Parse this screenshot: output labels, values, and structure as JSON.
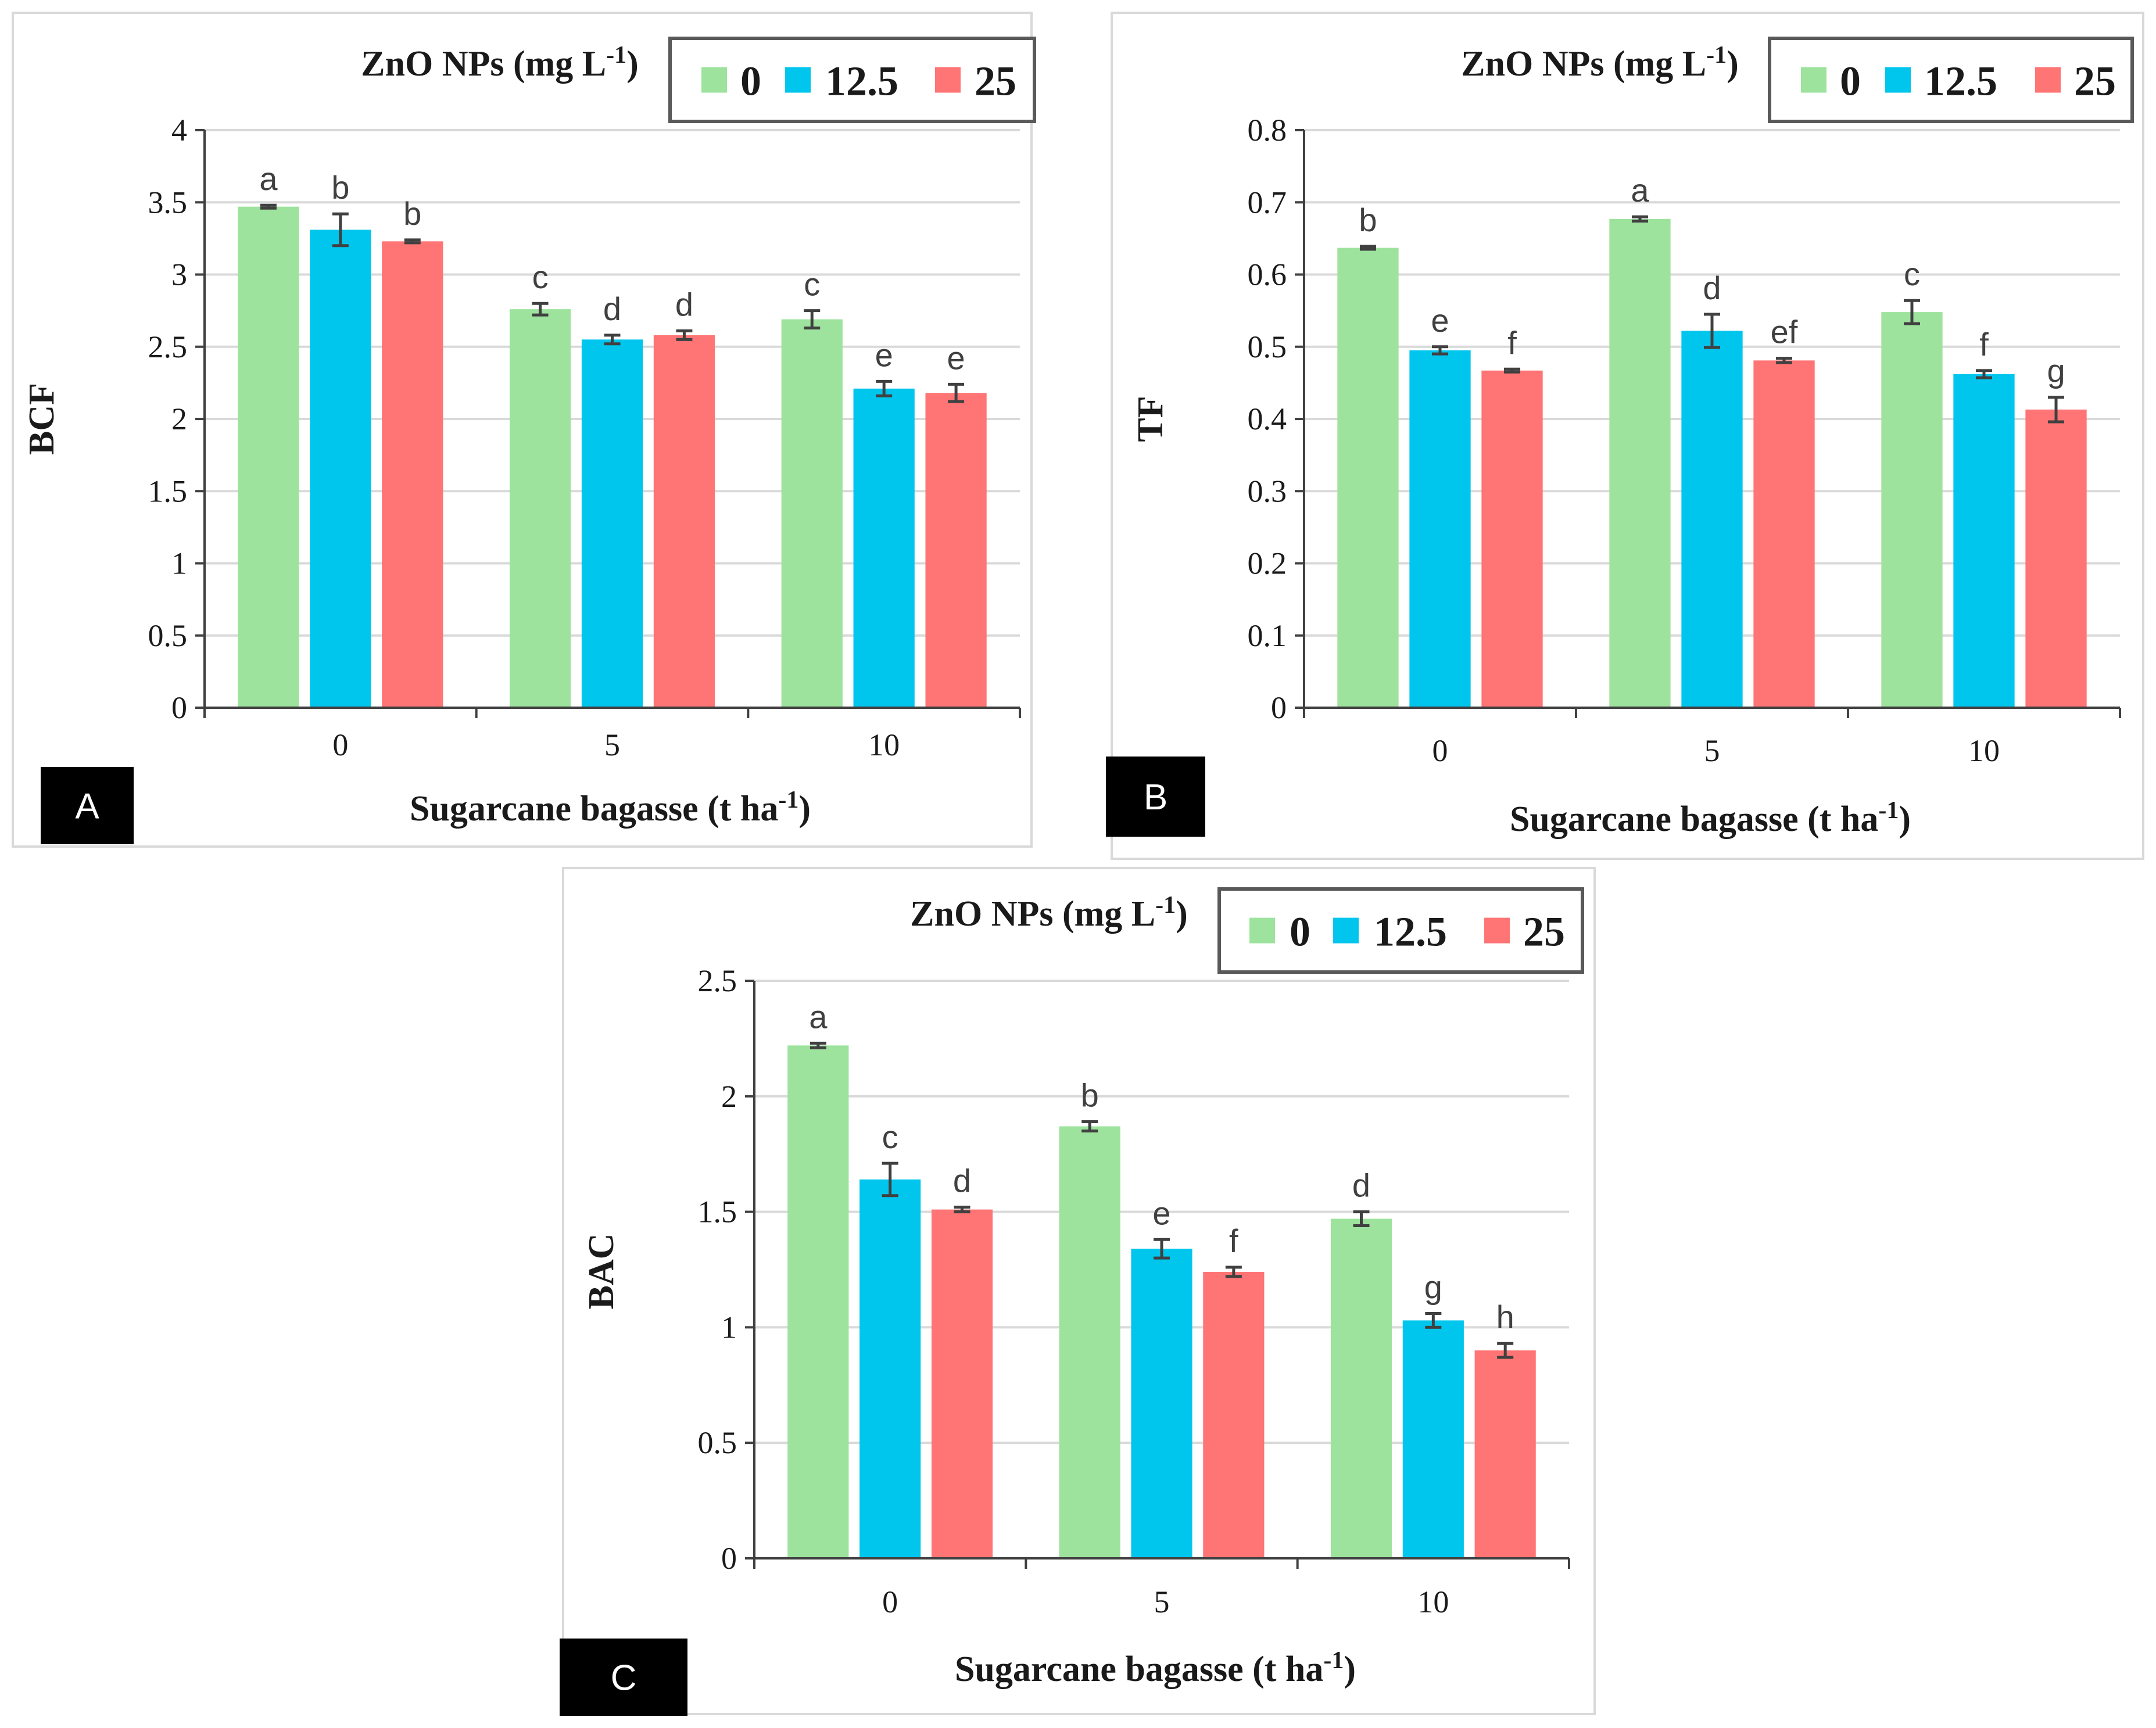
{
  "colors": {
    "series": [
      "#9de39d",
      "#00c6ee",
      "#ff7474"
    ],
    "grid": "#d9d9d9",
    "axis": "#404040",
    "frame": "#d9d9d9",
    "errorbar": "#404040"
  },
  "chart_data": [
    {
      "type": "bar",
      "panel_label": "A",
      "title": "",
      "xlabel": "Sugarcane bagasse (t ha",
      "xlabel_sup": "-1",
      "xlabel_end": ")",
      "ylabel": "BCF",
      "ylim": [
        0,
        4
      ],
      "yticks": [
        0,
        0.5,
        1,
        1.5,
        2,
        2.5,
        3,
        3.5,
        4
      ],
      "ytick_labels": [
        "0",
        "0.5",
        "1",
        "1.5",
        "2",
        "2.5",
        "3",
        "3.5",
        "4"
      ],
      "grid": true,
      "legend_title": "ZnO NPs (mg L",
      "legend_title_sup": "-1",
      "legend_title_end": ")",
      "categories": [
        "0",
        "5",
        "10"
      ],
      "series": [
        {
          "name": "0",
          "values": [
            3.47,
            2.76,
            2.69
          ],
          "errors": [
            0.01,
            0.04,
            0.06
          ],
          "letters": [
            "a",
            "c",
            "c"
          ]
        },
        {
          "name": "12.5",
          "values": [
            3.31,
            2.55,
            2.21
          ],
          "errors": [
            0.11,
            0.03,
            0.05
          ],
          "letters": [
            "b",
            "d",
            "e"
          ]
        },
        {
          "name": "25",
          "values": [
            3.23,
            2.58,
            2.18
          ],
          "errors": [
            0.01,
            0.03,
            0.06
          ],
          "letters": [
            "b",
            "d",
            "e"
          ]
        }
      ]
    },
    {
      "type": "bar",
      "panel_label": "B",
      "title": "",
      "xlabel": "Sugarcane bagasse (t ha",
      "xlabel_sup": "-1",
      "xlabel_end": ")",
      "ylabel": "TF",
      "ylim": [
        0,
        0.8
      ],
      "yticks": [
        0,
        0.1,
        0.2,
        0.3,
        0.4,
        0.5,
        0.6,
        0.7,
        0.8
      ],
      "ytick_labels": [
        "0",
        "0.1",
        "0.2",
        "0.3",
        "0.4",
        "0.5",
        "0.6",
        "0.7",
        "0.8"
      ],
      "grid": true,
      "legend_title": "ZnO NPs (mg L",
      "legend_title_sup": "-1",
      "legend_title_end": ")",
      "categories": [
        "0",
        "5",
        "10"
      ],
      "series": [
        {
          "name": "0",
          "values": [
            0.637,
            0.677,
            0.548
          ],
          "errors": [
            0.002,
            0.003,
            0.016
          ],
          "letters": [
            "b",
            "a",
            "c"
          ]
        },
        {
          "name": "12.5",
          "values": [
            0.495,
            0.522,
            0.462
          ],
          "errors": [
            0.005,
            0.023,
            0.005
          ],
          "letters": [
            "e",
            "d",
            "f"
          ]
        },
        {
          "name": "25",
          "values": [
            0.467,
            0.481,
            0.413
          ],
          "errors": [
            0.002,
            0.003,
            0.017
          ],
          "letters": [
            "f",
            "ef",
            "g"
          ]
        }
      ]
    },
    {
      "type": "bar",
      "panel_label": "C",
      "title": "",
      "xlabel": "Sugarcane bagasse (t ha",
      "xlabel_sup": "-1",
      "xlabel_end": ")",
      "ylabel": "BAC",
      "ylim": [
        0,
        2.5
      ],
      "yticks": [
        0,
        0.5,
        1,
        1.5,
        2,
        2.5
      ],
      "ytick_labels": [
        "0",
        "0.5",
        "1",
        "1.5",
        "2",
        "2.5"
      ],
      "grid": true,
      "legend_title": "ZnO NPs (mg L",
      "legend_title_sup": "-1",
      "legend_title_end": ")",
      "categories": [
        "0",
        "5",
        "10"
      ],
      "series": [
        {
          "name": "0",
          "values": [
            2.22,
            1.87,
            1.47
          ],
          "errors": [
            0.01,
            0.02,
            0.03
          ],
          "letters": [
            "a",
            "b",
            "d"
          ]
        },
        {
          "name": "12.5",
          "values": [
            1.64,
            1.34,
            1.03
          ],
          "errors": [
            0.07,
            0.04,
            0.03
          ],
          "letters": [
            "c",
            "e",
            "g"
          ]
        },
        {
          "name": "25",
          "values": [
            1.51,
            1.24,
            0.9
          ],
          "errors": [
            0.01,
            0.02,
            0.03
          ],
          "letters": [
            "d",
            "f",
            "h"
          ]
        }
      ]
    }
  ]
}
